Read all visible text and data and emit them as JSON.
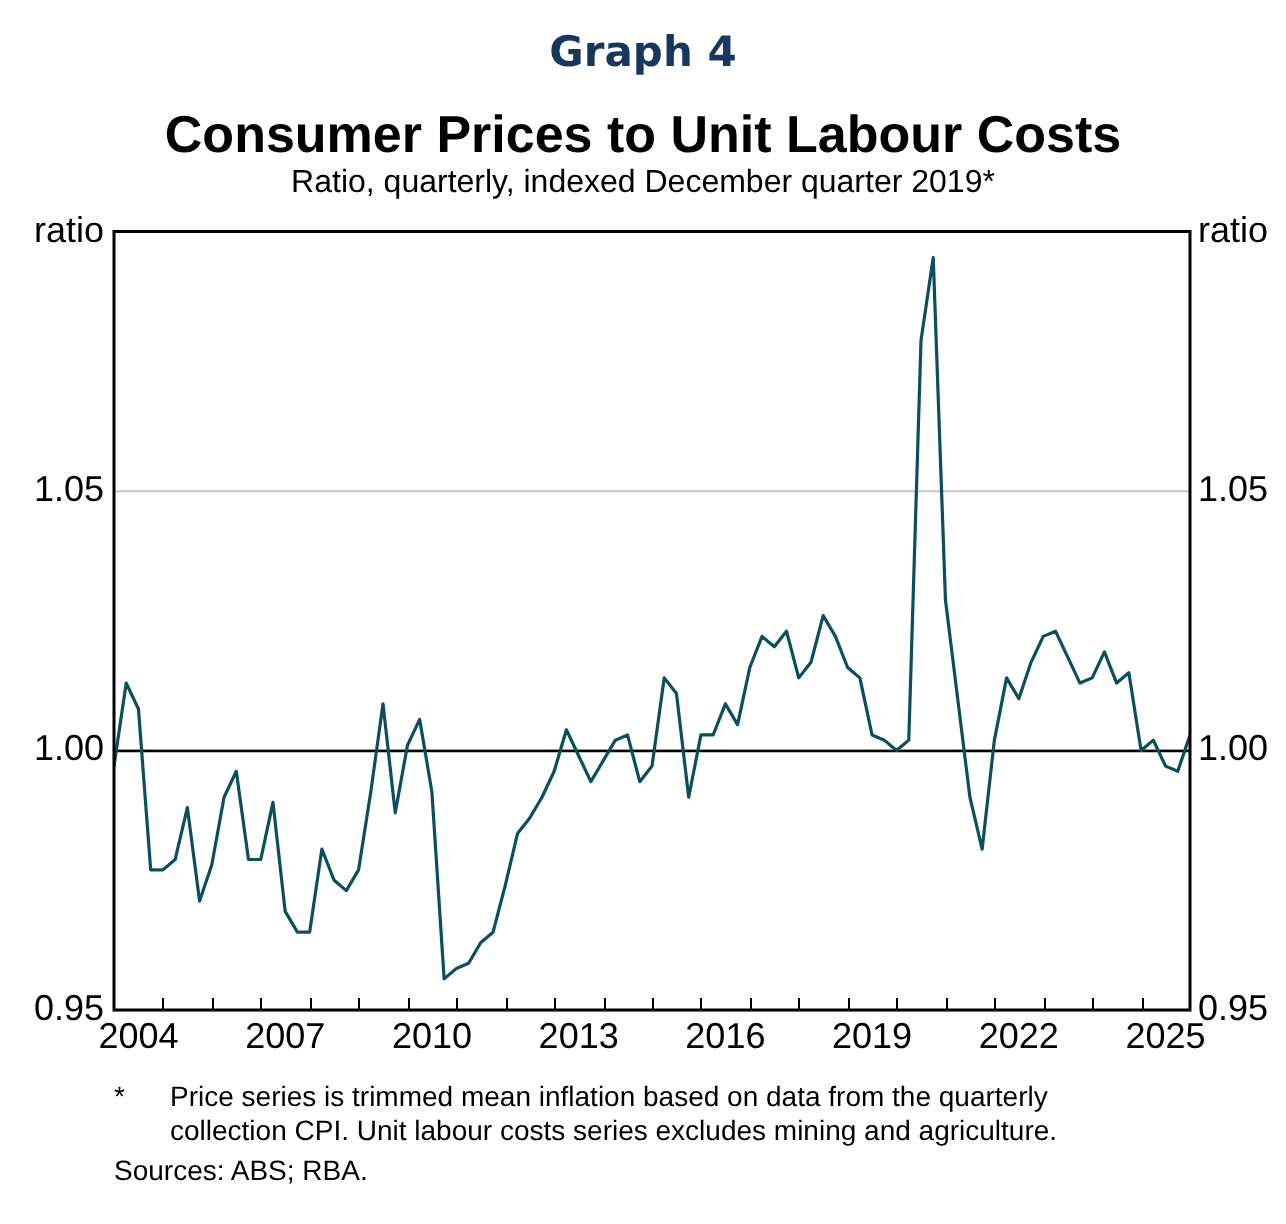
{
  "chart_data": {
    "type": "line",
    "title": "Consumer Prices to Unit Labour Costs",
    "subtitle": "Ratio, quarterly, indexed December quarter 2019*",
    "annotations": [
      "Graph 4",
      "*\tPrice series is trimmed mean inflation based on data from the quarterly collection CPI. Unit labour costs series excludes mining and agriculture.",
      "Sources:  ABS; RBA."
    ],
    "x": [
      2004,
      2004.25,
      2004.5,
      2004.75,
      2005,
      2005.25,
      2005.5,
      2005.75,
      2006,
      2006.25,
      2006.5,
      2006.75,
      2007,
      2007.25,
      2007.5,
      2007.75,
      2008,
      2008.25,
      2008.5,
      2008.75,
      2009,
      2009.25,
      2009.5,
      2009.75,
      2010,
      2010.25,
      2010.5,
      2010.75,
      2011,
      2011.25,
      2011.5,
      2011.75,
      2012,
      2012.25,
      2012.5,
      2012.75,
      2013,
      2013.25,
      2013.5,
      2013.75,
      2014,
      2014.25,
      2014.5,
      2014.75,
      2015,
      2015.25,
      2015.5,
      2015.75,
      2016,
      2016.25,
      2016.5,
      2016.75,
      2017,
      2017.25,
      2017.5,
      2017.75,
      2018,
      2018.25,
      2018.5,
      2018.75,
      2019,
      2019.25,
      2019.5,
      2019.75,
      2020,
      2020.25,
      2020.5,
      2020.75,
      2021,
      2021.25,
      2021.5,
      2021.75,
      2022,
      2022.25,
      2022.5,
      2022.75,
      2023,
      2023.25,
      2023.5,
      2023.75,
      2024,
      2024.25,
      2024.5,
      2024.75,
      2025,
      2025.25,
      2025.5,
      2025.75,
      2026
    ],
    "series": [
      {
        "color": "#0b4f5c",
        "values": [
          0.997,
          1.013,
          1.008,
          0.977,
          0.977,
          0.979,
          0.989,
          0.971,
          0.978,
          0.991,
          0.996,
          0.979,
          0.979,
          0.99,
          0.969,
          0.965,
          0.965,
          0.981,
          0.975,
          0.973,
          0.977,
          0.992,
          1.009,
          0.988,
          1.001,
          1.006,
          0.992,
          0.956,
          0.958,
          0.959,
          0.963,
          0.965,
          0.974,
          0.984,
          0.987,
          0.991,
          0.996,
          1.004,
          0.999,
          0.994,
          0.998,
          1.002,
          1.003,
          0.994,
          0.997,
          1.014,
          1.011,
          0.991,
          1.003,
          1.003,
          1.009,
          1.005,
          1.016,
          1.022,
          1.02,
          1.023,
          1.014,
          1.017,
          1.026,
          1.022,
          1.016,
          1.014,
          1.003,
          1.002,
          1.0,
          1.002,
          1.079,
          1.095,
          1.029,
          1.01,
          0.991,
          0.981,
          1.002,
          1.014,
          1.01,
          1.017,
          1.022,
          1.023,
          1.018,
          1.013,
          1.014,
          1.019,
          1.013,
          1.015,
          1.0,
          1.002,
          0.997,
          0.996,
          1.003
        ]
      }
    ],
    "xlim": [
      2004,
      2026
    ],
    "xticks": [
      {
        "value": 2004.5,
        "label": "2004"
      },
      {
        "value": 2005,
        "label": null
      },
      {
        "value": 2006,
        "label": null
      },
      {
        "value": 2007,
        "label": null
      },
      {
        "value": 2007.5,
        "label": "2007"
      },
      {
        "value": 2008,
        "label": null
      },
      {
        "value": 2009,
        "label": null
      },
      {
        "value": 2010,
        "label": null
      },
      {
        "value": 2010.5,
        "label": "2010"
      },
      {
        "value": 2011,
        "label": null
      },
      {
        "value": 2012,
        "label": null
      },
      {
        "value": 2013,
        "label": null
      },
      {
        "value": 2013.5,
        "label": "2013"
      },
      {
        "value": 2014,
        "label": null
      },
      {
        "value": 2015,
        "label": null
      },
      {
        "value": 2016,
        "label": null
      },
      {
        "value": 2016.5,
        "label": "2016"
      },
      {
        "value": 2017,
        "label": null
      },
      {
        "value": 2018,
        "label": null
      },
      {
        "value": 2019,
        "label": null
      },
      {
        "value": 2019.5,
        "label": "2019"
      },
      {
        "value": 2020,
        "label": null
      },
      {
        "value": 2021,
        "label": null
      },
      {
        "value": 2022,
        "label": null
      },
      {
        "value": 2022.5,
        "label": "2022"
      },
      {
        "value": 2023,
        "label": null
      },
      {
        "value": 2024,
        "label": null
      },
      {
        "value": 2025,
        "label": null
      },
      {
        "value": 2025.5,
        "label": "2025"
      }
    ],
    "ylim": [
      0.95,
      1.1
    ],
    "yticks": [
      {
        "value": 0.95,
        "label": "0.95"
      },
      {
        "value": 1.0,
        "label": "1.00"
      },
      {
        "value": 1.05,
        "label": "1.05"
      },
      {
        "value": 1.1,
        "label": "ratio"
      }
    ],
    "y2lim": [
      0.95,
      1.1
    ],
    "y2ticks": [
      {
        "value": 0.95,
        "label": "0.95"
      },
      {
        "value": 1.0,
        "label": "1.00"
      },
      {
        "value": 1.05,
        "label": "1.05"
      },
      {
        "value": 1.1,
        "label": "ratio"
      }
    ],
    "ref_lines": [
      {
        "axis": "y",
        "value": 1.0,
        "color": "#000000"
      }
    ],
    "grid": "y",
    "legend": false,
    "marker": "none",
    "line_style": "solid"
  }
}
